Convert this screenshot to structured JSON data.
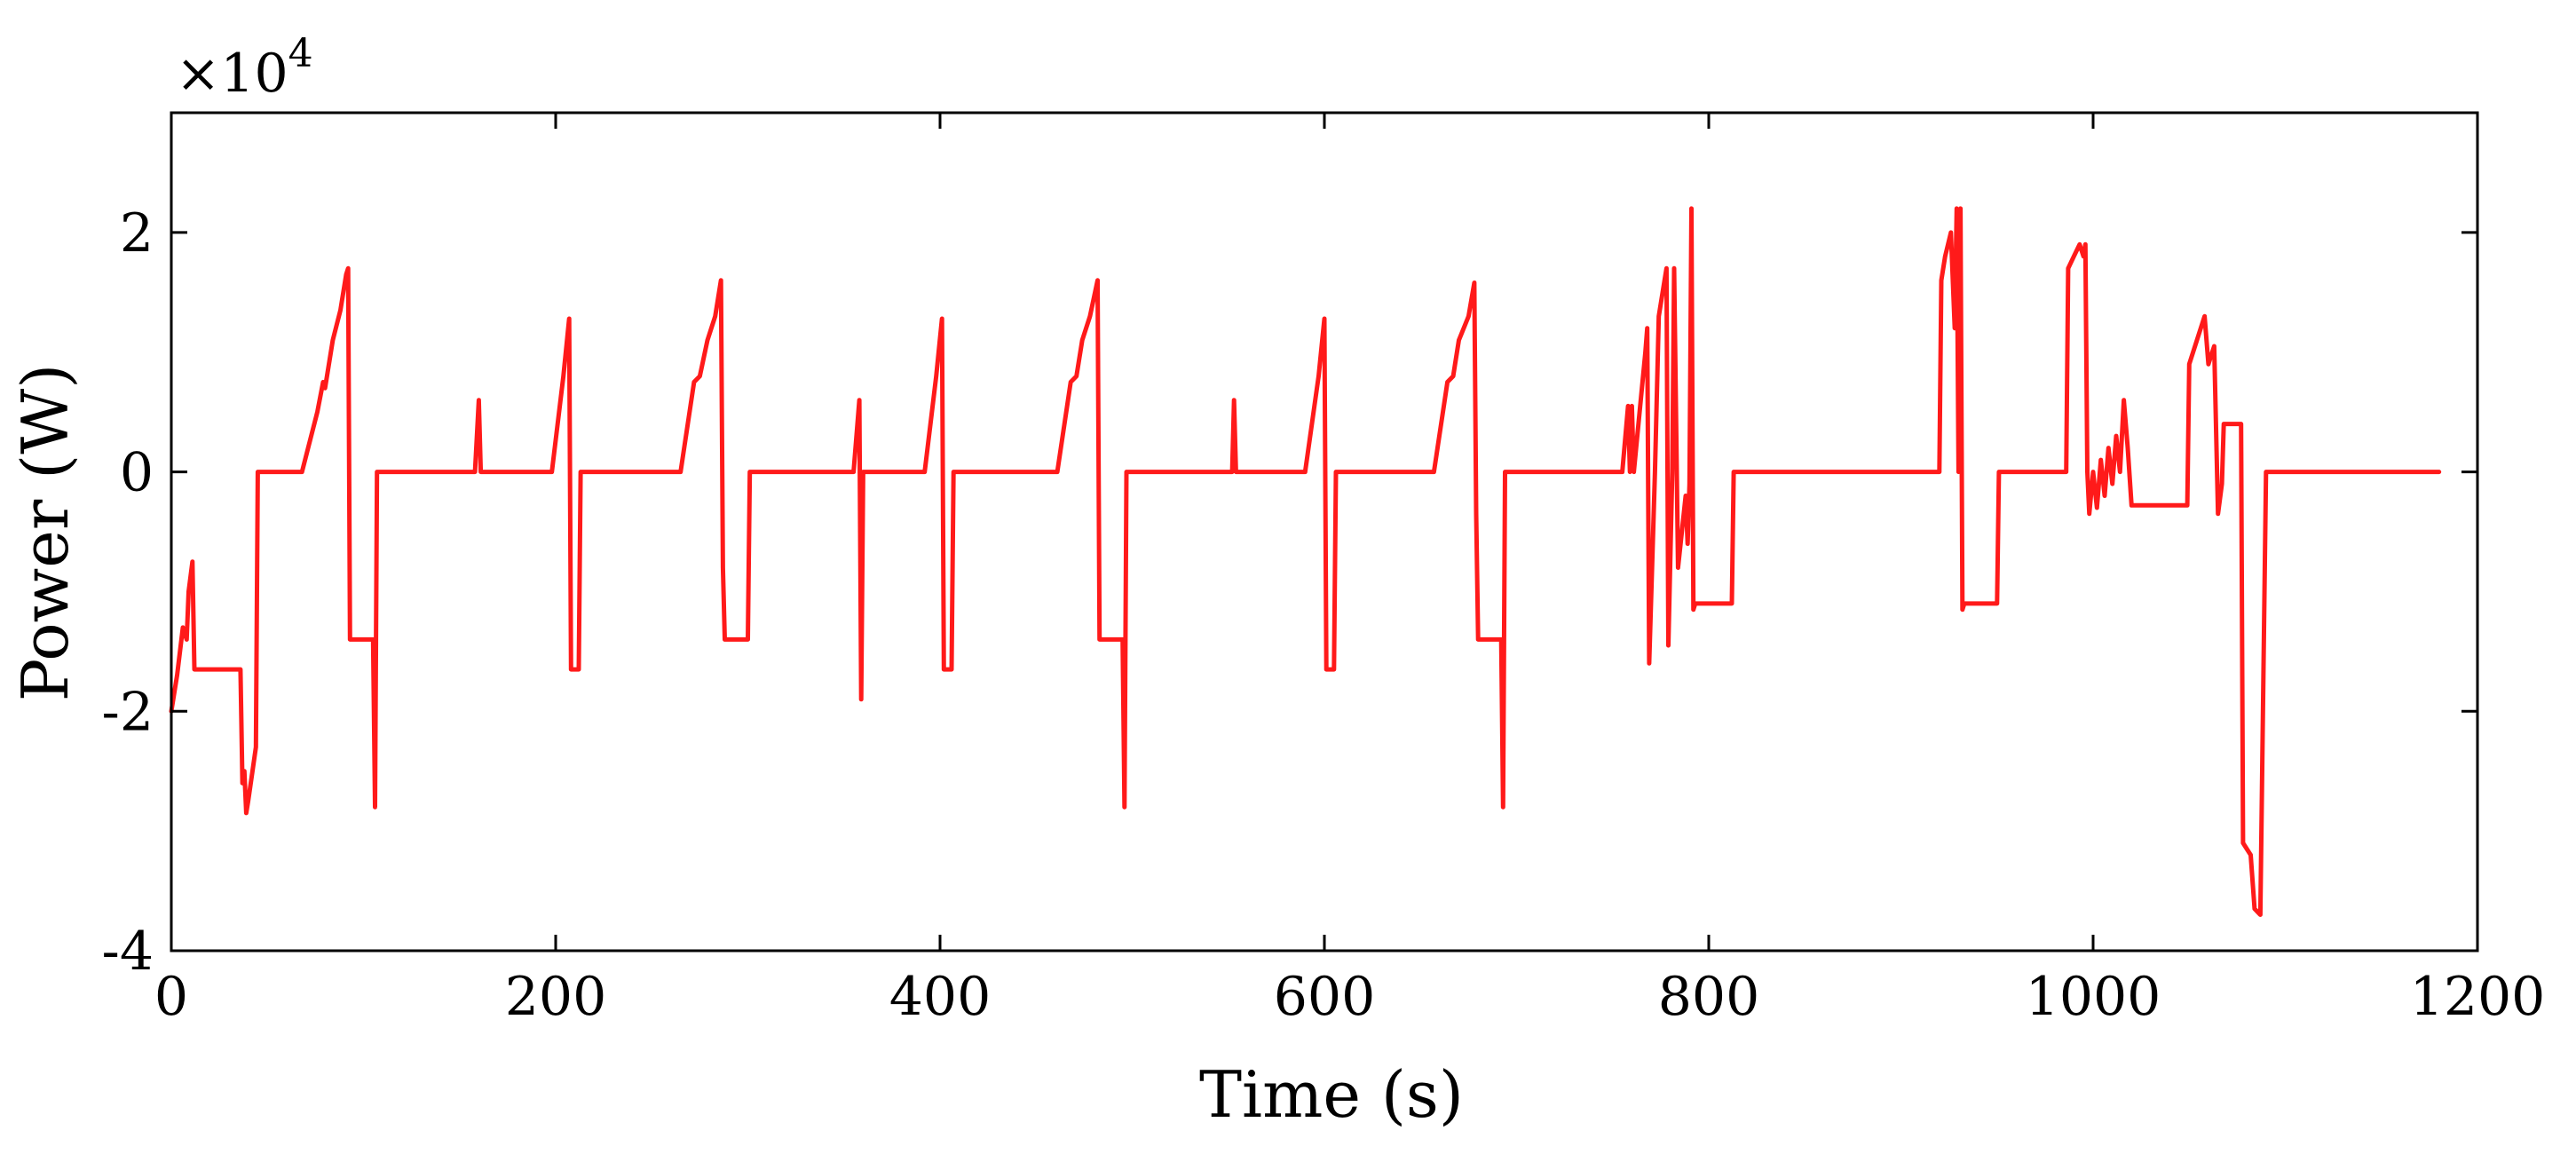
{
  "chart_data": {
    "type": "line",
    "title": "",
    "xlabel": "Time (s)",
    "ylabel": "Power (W)",
    "exponent_label": {
      "base": "×10",
      "power": "4"
    },
    "xlim": [
      0,
      1200
    ],
    "ylim": [
      -4,
      3
    ],
    "xticks": [
      0,
      200,
      400,
      600,
      800,
      1000,
      1200
    ],
    "yticks": [
      -4,
      -2,
      0,
      2
    ],
    "xtick_labels": [
      "0",
      "200",
      "400",
      "600",
      "800",
      "1000",
      "1200"
    ],
    "ytick_labels": [
      "-4",
      "-2",
      "0",
      "2"
    ],
    "grid": false,
    "series": [
      {
        "name": "Power",
        "color": "#ff1a1a",
        "points": [
          [
            0,
            -2.0
          ],
          [
            3,
            -1.7
          ],
          [
            6,
            -1.3
          ],
          [
            8,
            -1.4
          ],
          [
            9,
            -1.0
          ],
          [
            11,
            -0.75
          ],
          [
            12,
            -1.65
          ],
          [
            36,
            -1.65
          ],
          [
            37,
            -2.6
          ],
          [
            38,
            -2.5
          ],
          [
            39,
            -2.85
          ],
          [
            40,
            -2.75
          ],
          [
            44,
            -2.3
          ],
          [
            45,
            0.0
          ],
          [
            68,
            0.0
          ],
          [
            76,
            0.5
          ],
          [
            79,
            0.75
          ],
          [
            80,
            0.7
          ],
          [
            84,
            1.1
          ],
          [
            88,
            1.35
          ],
          [
            91,
            1.65
          ],
          [
            92,
            1.7
          ],
          [
            93,
            -1.4
          ],
          [
            105,
            -1.4
          ],
          [
            106,
            -2.8
          ],
          [
            107,
            0.0
          ],
          [
            158,
            0.0
          ],
          [
            160,
            0.6
          ],
          [
            161,
            0.0
          ],
          [
            198,
            0.0
          ],
          [
            204,
            0.8
          ],
          [
            207,
            1.28
          ],
          [
            208,
            -1.65
          ],
          [
            212,
            -1.65
          ],
          [
            213,
            0.0
          ],
          [
            265,
            0.0
          ],
          [
            272,
            0.75
          ],
          [
            275,
            0.8
          ],
          [
            279,
            1.1
          ],
          [
            283,
            1.3
          ],
          [
            286,
            1.6
          ],
          [
            287,
            -0.8
          ],
          [
            288,
            -1.4
          ],
          [
            300,
            -1.4
          ],
          [
            301,
            0.0
          ],
          [
            355,
            0.0
          ],
          [
            358,
            0.6
          ],
          [
            359,
            -1.9
          ],
          [
            360,
            0.0
          ],
          [
            392,
            0.0
          ],
          [
            398,
            0.8
          ],
          [
            401,
            1.28
          ],
          [
            402,
            -1.65
          ],
          [
            406,
            -1.65
          ],
          [
            407,
            0.0
          ],
          [
            461,
            0.0
          ],
          [
            468,
            0.75
          ],
          [
            471,
            0.8
          ],
          [
            474,
            1.1
          ],
          [
            478,
            1.3
          ],
          [
            482,
            1.6
          ],
          [
            483,
            -1.4
          ],
          [
            495,
            -1.4
          ],
          [
            496,
            -2.8
          ],
          [
            497,
            0.0
          ],
          [
            552,
            0.0
          ],
          [
            553,
            0.6
          ],
          [
            554,
            0.0
          ],
          [
            590,
            0.0
          ],
          [
            597,
            0.8
          ],
          [
            600,
            1.28
          ],
          [
            601,
            -1.65
          ],
          [
            605,
            -1.65
          ],
          [
            606,
            0.0
          ],
          [
            657,
            0.0
          ],
          [
            664,
            0.75
          ],
          [
            667,
            0.8
          ],
          [
            670,
            1.1
          ],
          [
            675,
            1.3
          ],
          [
            678,
            1.58
          ],
          [
            679,
            -0.35
          ],
          [
            680,
            -1.4
          ],
          [
            692,
            -1.4
          ],
          [
            693,
            -2.8
          ],
          [
            694,
            0.0
          ],
          [
            755,
            0.0
          ],
          [
            758,
            0.55
          ],
          [
            759,
            0.0
          ],
          [
            760,
            0.55
          ],
          [
            761,
            0.0
          ],
          [
            767,
            1.0
          ],
          [
            768,
            1.2
          ],
          [
            769,
            -1.6
          ],
          [
            772,
            0.0
          ],
          [
            774,
            1.3
          ],
          [
            777,
            1.6
          ],
          [
            778,
            1.7
          ],
          [
            779,
            -1.45
          ],
          [
            781,
            0.0
          ],
          [
            782,
            1.7
          ],
          [
            784,
            -0.8
          ],
          [
            786,
            -0.5
          ],
          [
            788,
            -0.2
          ],
          [
            789,
            -0.6
          ],
          [
            790,
            -0.1
          ],
          [
            791,
            2.2
          ],
          [
            792,
            -1.15
          ],
          [
            793,
            -1.1
          ],
          [
            812,
            -1.1
          ],
          [
            813,
            0.0
          ],
          [
            920,
            0.0
          ],
          [
            921,
            1.6
          ],
          [
            923,
            1.8
          ],
          [
            926,
            2.0
          ],
          [
            928,
            1.2
          ],
          [
            929,
            2.2
          ],
          [
            930,
            0.0
          ],
          [
            931,
            2.2
          ],
          [
            932,
            -1.15
          ],
          [
            933,
            -1.1
          ],
          [
            950,
            -1.1
          ],
          [
            951,
            0.0
          ],
          [
            986,
            0.0
          ],
          [
            987,
            1.7
          ],
          [
            990,
            1.8
          ],
          [
            993,
            1.9
          ],
          [
            995,
            1.8
          ],
          [
            996,
            1.9
          ],
          [
            997,
            0.0
          ],
          [
            998,
            -0.35
          ],
          [
            1000,
            0.0
          ],
          [
            1002,
            -0.3
          ],
          [
            1004,
            0.1
          ],
          [
            1006,
            -0.2
          ],
          [
            1008,
            0.2
          ],
          [
            1010,
            -0.1
          ],
          [
            1012,
            0.3
          ],
          [
            1014,
            0.0
          ],
          [
            1016,
            0.6
          ],
          [
            1018,
            0.2
          ],
          [
            1020,
            -0.28
          ],
          [
            1049,
            -0.28
          ],
          [
            1050,
            0.9
          ],
          [
            1058,
            1.3
          ],
          [
            1060,
            0.9
          ],
          [
            1063,
            1.05
          ],
          [
            1065,
            -0.35
          ],
          [
            1067,
            -0.1
          ],
          [
            1068,
            0.4
          ],
          [
            1077,
            0.4
          ],
          [
            1078,
            -3.1
          ],
          [
            1082,
            -3.2
          ],
          [
            1084,
            -3.65
          ],
          [
            1087,
            -3.7
          ],
          [
            1090,
            0.0
          ],
          [
            1180,
            0.0
          ]
        ]
      }
    ]
  }
}
